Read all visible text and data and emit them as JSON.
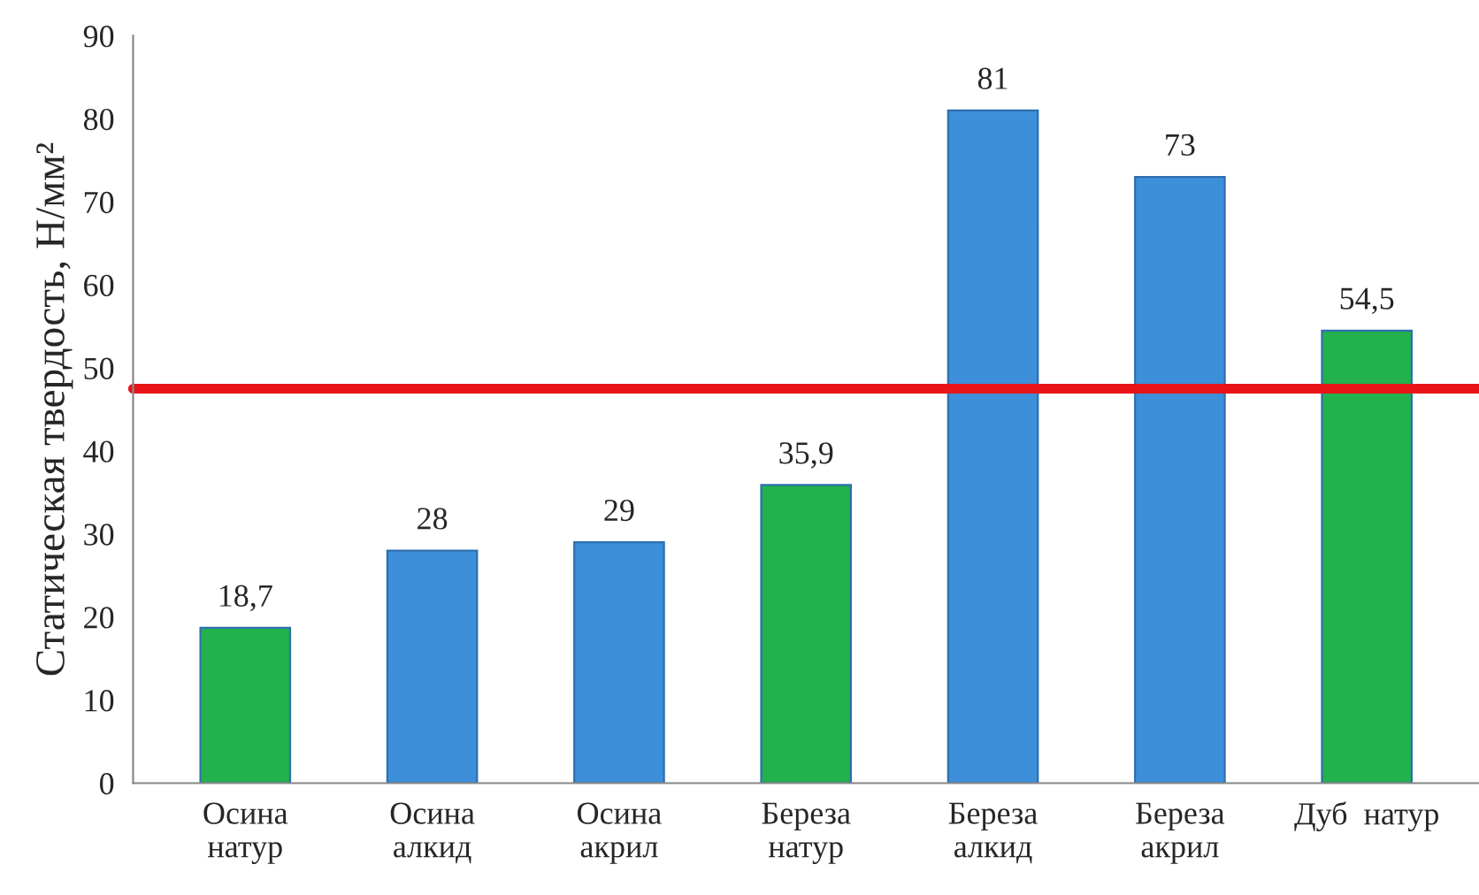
{
  "chart_data": {
    "type": "bar",
    "ylabel": "Статическая твердость, Н/мм²",
    "categories": [
      "Осина\nнатур",
      "Осина\nалкид",
      "Осина\nакрил",
      "Береза\nнатур",
      "Береза\nалкид",
      "Береза\nакрил",
      "Дуб  натур"
    ],
    "values": [
      18.7,
      28,
      29,
      35.9,
      81,
      73,
      54.5
    ],
    "value_labels": [
      "18,7",
      "28",
      "29",
      "35,9",
      "81",
      "73",
      "54,5"
    ],
    "colors": [
      "#22b14c",
      "#3d8fd9",
      "#3d8fd9",
      "#22b14c",
      "#3d8fd9",
      "#3d8fd9",
      "#22b14c"
    ],
    "ylim": [
      0,
      90
    ],
    "yticks": [
      0,
      10,
      20,
      30,
      40,
      50,
      60,
      70,
      80,
      90
    ],
    "ref_lines": [
      {
        "axis": "y",
        "value": 47.5,
        "color": "#e8141a"
      }
    ],
    "grid": false,
    "legend": false
  }
}
